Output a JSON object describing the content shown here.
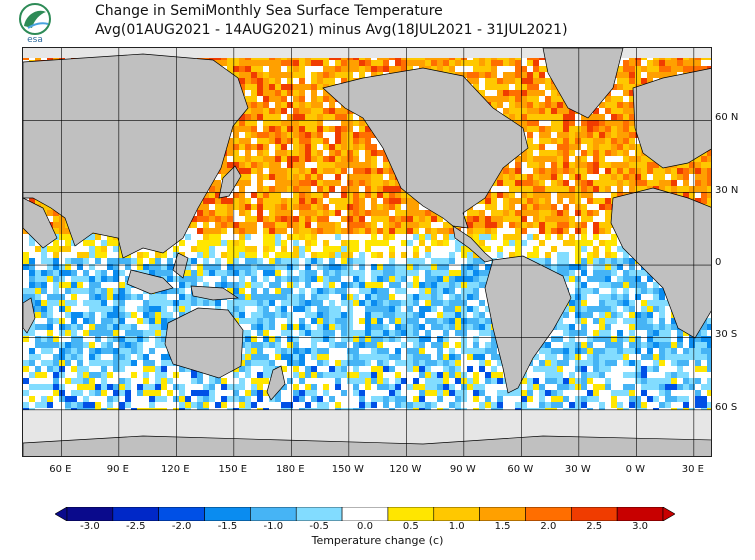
{
  "title": {
    "line1": "Change in SemiMonthly Sea Surface Temperature",
    "line2": "Avg(01AUG2021 - 14AUG2021) minus Avg(18JUL2021 - 31JUL2021)"
  },
  "logo": {
    "name": "agency-seal-logo",
    "text": "esa"
  },
  "map": {
    "projection": "equirectangular",
    "lon_range": [
      40,
      400
    ],
    "lat_range": [
      -80,
      90
    ],
    "land_color": "#c0c0c0",
    "ice_color": "#e6e6e6",
    "coast_color": "#000000",
    "grid_color": "#000000"
  },
  "lat_labels": [
    "60 N",
    "30 N",
    "0",
    "30 S",
    "60 S"
  ],
  "lon_labels": [
    "60 E",
    "90 E",
    "120 E",
    "150 E",
    "180 E",
    "150 W",
    "120 W",
    "90 W",
    "60 W",
    "30 W",
    "0 W",
    "30 E"
  ],
  "colorbar": {
    "title": "Temperature change  (c)",
    "tick_labels": [
      "-3.0",
      "-2.5",
      "-2.0",
      "-1.5",
      "-1.0",
      "-0.5",
      "0.0",
      "0.5",
      "1.0",
      "1.5",
      "2.0",
      "2.5",
      "3.0"
    ],
    "colors": [
      "#0a0a8c",
      "#0028c8",
      "#0050e6",
      "#0a8cf0",
      "#46b4f5",
      "#82dcff",
      "#ffffff",
      "#ffe600",
      "#ffc800",
      "#ffa000",
      "#ff6e00",
      "#f03c00",
      "#c80000"
    ]
  }
}
